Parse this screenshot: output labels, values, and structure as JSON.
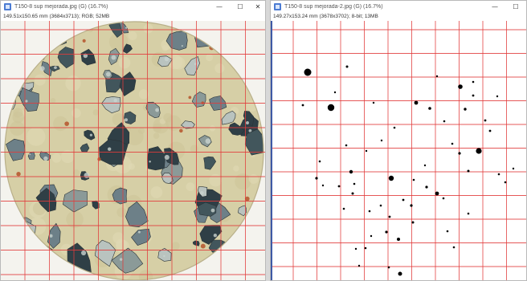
{
  "left_window": {
    "title": "T150-8 sup mejorada.jpg (G) (16.7%)",
    "info": "149.51x150.65 mm (3684x3713); RGB; 52MB",
    "controls": {
      "minimize": "—",
      "maximize": "☐",
      "close": "✕"
    },
    "image_content": "photo of circular concrete core cross-section with red grid overlay"
  },
  "right_window": {
    "title": "T150-8 sup mejorada-2.jpg (G) (16.7%)",
    "info": "149.27x153.24 mm (3678x3702); 8-bit; 13MB",
    "controls": {
      "minimize": "—",
      "maximize": "☐"
    },
    "image_content": "binary mask: black pore spots on white with red grid overlay"
  },
  "colors": {
    "grid": "#e23b3b",
    "concrete": "#d6cfa6",
    "aggregate_dark": "#2f3f46",
    "aggregate_mid": "#6d8088",
    "aggregate_light": "#b9c3bf",
    "pore": "#000000"
  }
}
